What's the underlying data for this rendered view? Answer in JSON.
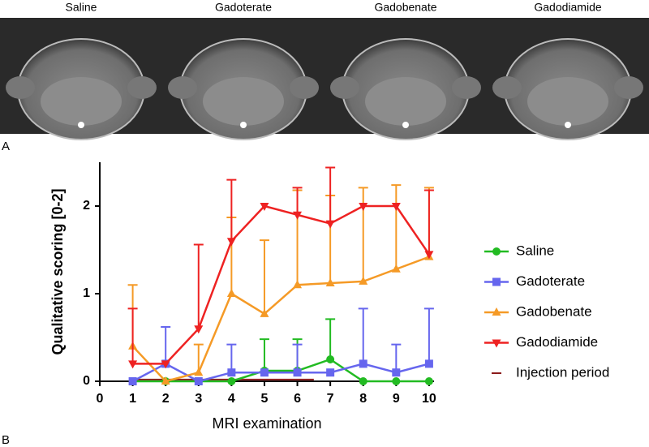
{
  "panel_labels": [
    "A",
    "B"
  ],
  "images": {
    "labels": [
      "Saline",
      "Gadoterate",
      "Gadobenate",
      "Gadodiamide"
    ]
  },
  "chart_data": {
    "type": "line",
    "y_label": "Qualitative scoring [0-2]",
    "x_label": "MRI examination",
    "x": [
      1,
      2,
      3,
      4,
      5,
      6,
      7,
      8,
      9,
      10
    ],
    "xlim": [
      0,
      10.15
    ],
    "xticks": [
      0,
      1,
      2,
      3,
      4,
      5,
      6,
      7,
      8,
      9,
      10
    ],
    "ylim": [
      0,
      2.5
    ],
    "yticks": [
      0,
      1,
      2
    ],
    "series": [
      {
        "name": "Saline",
        "color": "#22bb22",
        "marker": "circle",
        "values": [
          0,
          0,
          0,
          0,
          0.12,
          0.12,
          0.25,
          0,
          0,
          0
        ],
        "errors": [
          null,
          null,
          null,
          null,
          0.36,
          0.36,
          0.46,
          null,
          null,
          null
        ]
      },
      {
        "name": "Gadoterate",
        "color": "#6666ee",
        "marker": "square",
        "values": [
          0,
          0.2,
          0,
          0.1,
          0.1,
          0.1,
          0.1,
          0.2,
          0.1,
          0.2
        ],
        "errors": [
          null,
          0.42,
          null,
          0.32,
          null,
          0.32,
          null,
          0.63,
          0.32,
          0.63
        ]
      },
      {
        "name": "Gadobenate",
        "color": "#f59a26",
        "marker": "triangle-up",
        "values": [
          0.4,
          0,
          0.1,
          1.0,
          0.77,
          1.1,
          1.12,
          1.14,
          1.28,
          1.42
        ],
        "errors": [
          0.7,
          null,
          0.32,
          0.87,
          0.84,
          1.08,
          1.0,
          1.07,
          0.96,
          0.79
        ]
      },
      {
        "name": "Gadodiamide",
        "color": "#ee2222",
        "marker": "triangle-down",
        "values": [
          0.2,
          0.2,
          0.6,
          1.6,
          2.0,
          1.9,
          1.8,
          2.0,
          2.0,
          1.45
        ],
        "errors": [
          0.63,
          null,
          0.96,
          0.7,
          null,
          0.31,
          0.64,
          null,
          null,
          0.73
        ]
      }
    ],
    "injection_period": {
      "name": "Injection period",
      "color": "#8b1a1a",
      "x": [
        1,
        6.5
      ],
      "values": [
        0.02,
        0.02
      ]
    }
  }
}
